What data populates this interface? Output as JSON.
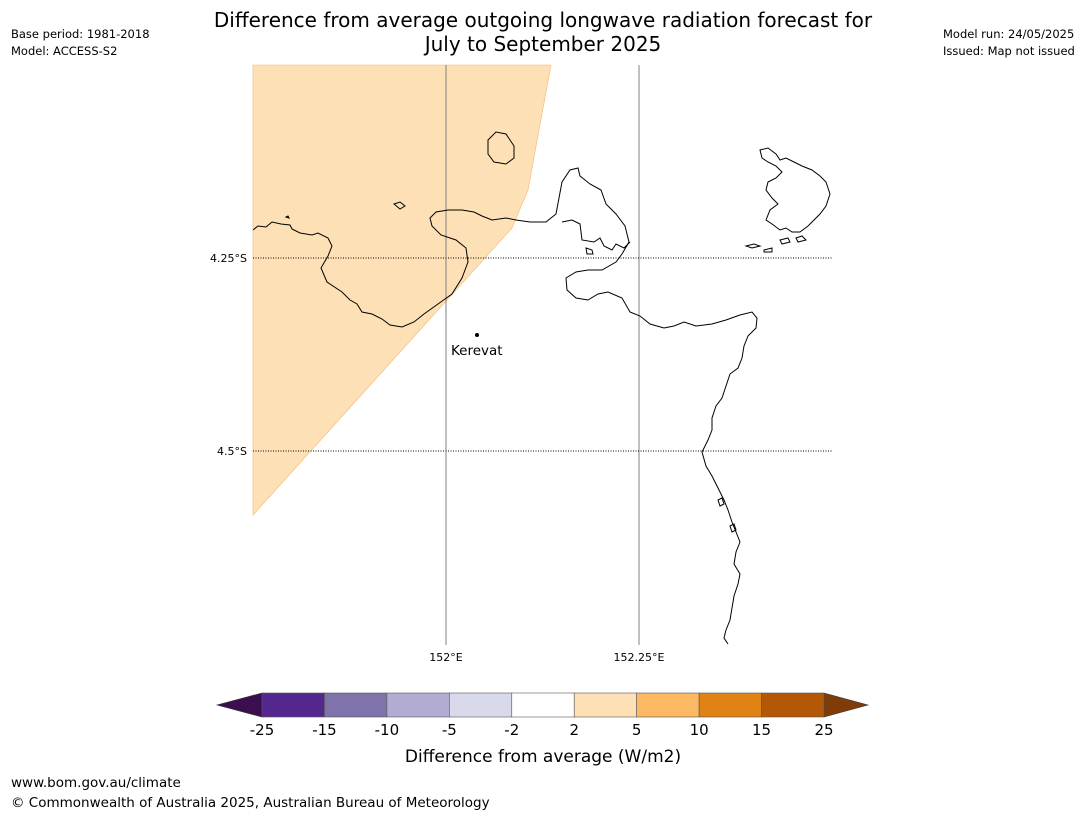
{
  "header": {
    "title_line1": "Difference from average outgoing longwave radiation forecast for",
    "title_line2": "July to September 2025",
    "base_period": "Base period: 1981-2018",
    "model": "Model: ACCESS-S2",
    "model_run": "Model run: 24/05/2025",
    "issued": "Issued: Map not issued"
  },
  "map": {
    "lat_labels": [
      "4.25°S",
      "4.5°S"
    ],
    "lon_labels": [
      "152°E",
      "152.25°E"
    ],
    "place": {
      "name": "Kerevat"
    },
    "shaded_category": "2 to 5"
  },
  "colorbar": {
    "label": "Difference from average (W/m2)",
    "ticks": [
      "-25",
      "-15",
      "-10",
      "-5",
      "-2",
      "2",
      "5",
      "10",
      "15",
      "25"
    ],
    "colors": [
      "#3b0f4e",
      "#54278f",
      "#8073ac",
      "#b2abd2",
      "#d8daeb",
      "#ffffff",
      "#fee0b6",
      "#fdb863",
      "#e08214",
      "#b35806",
      "#7f3b08"
    ]
  },
  "footer": {
    "url": "www.bom.gov.au/climate",
    "copyright": "© Commonwealth of Australia 2025, Australian Bureau of Meteorology"
  }
}
